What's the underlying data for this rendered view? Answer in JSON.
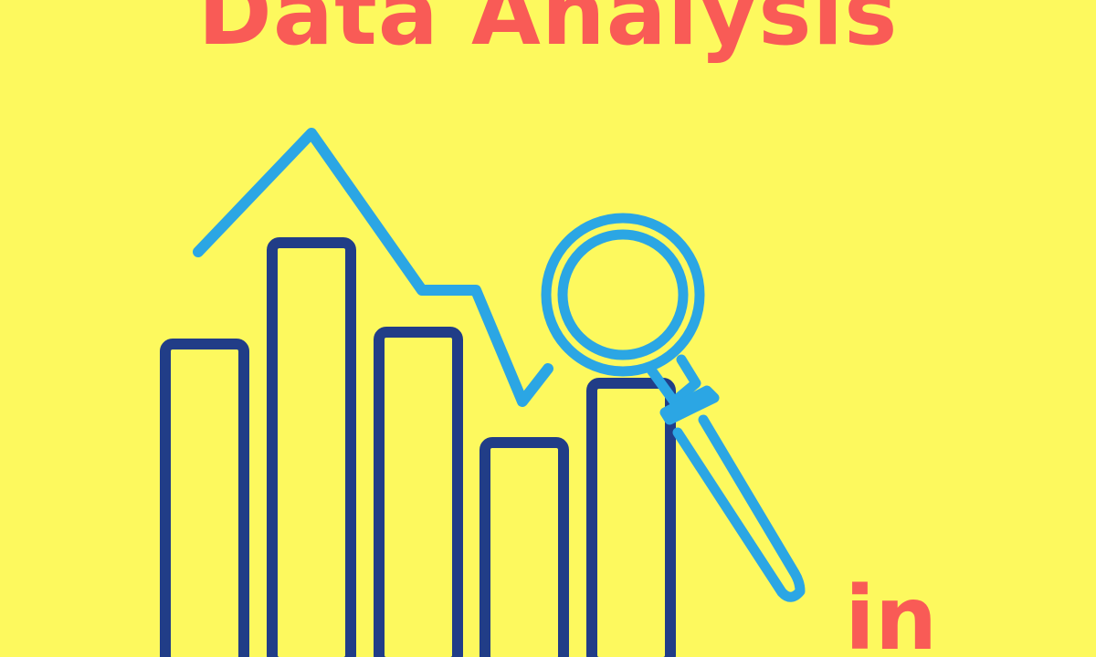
{
  "poster": {
    "headline": "Data Analysis",
    "tail_word": "in"
  },
  "colors": {
    "background": "#FDF95E",
    "headline": "#F95B56",
    "bar_outline": "#213D87",
    "trend_line": "#2BA6E4",
    "magnifier": "#2BA6E4"
  },
  "icons": {
    "bars": "bar-chart-icon",
    "trend": "trend-line-icon",
    "magnifier": "magnifying-glass-icon"
  }
}
